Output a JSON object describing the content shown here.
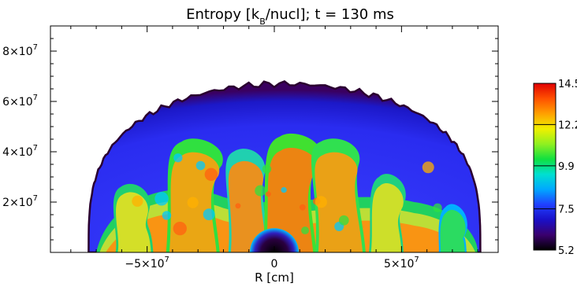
{
  "chart_data": {
    "type": "heatmap",
    "title_parts": [
      "Entropy [k",
      "B",
      "/nucl]; t = 130 ms"
    ],
    "xlabel": "R [cm]",
    "ylabel": "",
    "xlim": [
      -88000000,
      88000000
    ],
    "ylim": [
      0,
      90000000
    ],
    "x_ticks": [
      {
        "value": -50000000,
        "mantissa": "−5×10",
        "exp": "7"
      },
      {
        "value": 0,
        "mantissa": "0",
        "exp": ""
      },
      {
        "value": 50000000,
        "mantissa": "5×10",
        "exp": "7"
      }
    ],
    "y_ticks": [
      {
        "value": 20000000,
        "mantissa": "2×10",
        "exp": "7"
      },
      {
        "value": 40000000,
        "mantissa": "4×10",
        "exp": "7"
      },
      {
        "value": 60000000,
        "mantissa": "6×10",
        "exp": "7"
      },
      {
        "value": 80000000,
        "mantissa": "8×10",
        "exp": "7"
      }
    ],
    "colorbar": {
      "ticks": [
        "5.2",
        "7.5",
        "9.9",
        "12.2",
        "14.5"
      ],
      "range": [
        5.2,
        14.5
      ],
      "colormap": [
        "#000000",
        "#3a006e",
        "#1a10c8",
        "#2040ff",
        "#00a8ff",
        "#00e0d0",
        "#10e040",
        "#90f020",
        "#f0f000",
        "#ffa000",
        "#ff5000",
        "#e00000"
      ]
    },
    "shock_shape": {
      "x_extent": [
        -73000000,
        81000000
      ],
      "max_height": 67000000
    },
    "features": {
      "low_entropy_core": {
        "x": 0,
        "y": 0,
        "radius": 6000000,
        "value": 5.2
      },
      "post_shock_entropy": 7.5,
      "plume_entropy": 14.5
    }
  }
}
